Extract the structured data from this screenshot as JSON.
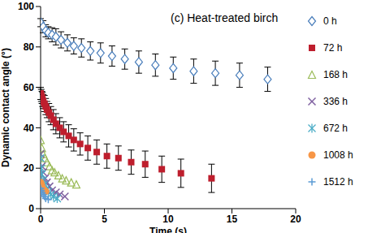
{
  "chart_data": {
    "type": "scatter",
    "title": "(c) Heat-treated birch",
    "x_label": "Time (s)",
    "y_label": "Dynamic contact angle (°)",
    "xlim": [
      0,
      20
    ],
    "ylim": [
      0,
      100
    ],
    "xticks": [
      0,
      5,
      10,
      15,
      20
    ],
    "yticks": [
      0,
      20,
      40,
      60,
      80,
      100
    ],
    "grid": false,
    "legend": "right",
    "series": [
      {
        "name": "0 h",
        "color": "#4a7ebb",
        "marker": "diamond",
        "x": [
          0,
          0.2,
          0.4,
          0.6,
          0.9,
          1.2,
          1.6,
          2.1,
          2.6,
          3.2,
          3.9,
          4.7,
          5.6,
          6.6,
          7.7,
          9.0,
          10.4,
          12.0,
          13.7,
          15.6,
          17.8
        ],
        "values": [
          92,
          90,
          88,
          87,
          86,
          85,
          83.5,
          82,
          80.5,
          79.5,
          78,
          77,
          75.5,
          74,
          72.5,
          71,
          69.5,
          68,
          67,
          66,
          64
        ],
        "errors": [
          2,
          3,
          3,
          3,
          3.5,
          4,
          4,
          4,
          4,
          4.5,
          4.5,
          5,
          5,
          5,
          5.5,
          5.5,
          5.5,
          6,
          6,
          6,
          6
        ]
      },
      {
        "name": "72 h",
        "color": "#be1e2d",
        "marker": "square",
        "x": [
          0,
          0.05,
          0.1,
          0.15,
          0.2,
          0.3,
          0.4,
          0.5,
          0.65,
          0.8,
          1.0,
          1.2,
          1.5,
          1.8,
          2.2,
          2.6,
          3.1,
          3.7,
          4.4,
          5.2,
          6.1,
          7.1,
          8.2,
          9.5,
          11.0,
          13.4
        ],
        "values": [
          57,
          56,
          55,
          54,
          53,
          52,
          50.5,
          49,
          47.5,
          46,
          44,
          42,
          40,
          38,
          36,
          34,
          32,
          30,
          28,
          26,
          25,
          23,
          22,
          19.5,
          17.5,
          15
        ],
        "errors": [
          3,
          3,
          3,
          3.5,
          3.5,
          4,
          4,
          4,
          4.5,
          4.5,
          5,
          5,
          5,
          5,
          5.5,
          5.5,
          5.5,
          6,
          6,
          6,
          6,
          6,
          6.5,
          6.5,
          7,
          7
        ]
      },
      {
        "name": "168 h",
        "color": "#9bbb59",
        "marker": "triangle",
        "x": [
          0,
          0.1,
          0.2,
          0.35,
          0.5,
          0.7,
          0.9,
          1.1,
          1.4,
          1.7,
          2.0,
          2.4,
          2.8
        ],
        "values": [
          34,
          30,
          27,
          25,
          23,
          21,
          19,
          18,
          16.5,
          15,
          14,
          13,
          12
        ]
      },
      {
        "name": "336 h",
        "color": "#7f60a0",
        "marker": "x",
        "x": [
          0,
          0.1,
          0.2,
          0.35,
          0.5,
          0.7,
          0.9,
          1.2,
          1.5,
          1.9
        ],
        "values": [
          27,
          21,
          18,
          15,
          13,
          11,
          9,
          8,
          7,
          6
        ]
      },
      {
        "name": "672 h",
        "color": "#4bacc6",
        "marker": "asterisk",
        "x": [
          0,
          0.05,
          0.1,
          0.2,
          0.3,
          0.45,
          0.6,
          0.8,
          1.0,
          1.3
        ],
        "values": [
          25,
          20,
          17,
          14,
          12,
          10,
          8.5,
          7,
          6,
          5
        ]
      },
      {
        "name": "1008 h",
        "color": "#f79646",
        "marker": "circle",
        "x": [
          0,
          0.05,
          0.1,
          0.15,
          0.2,
          0.3,
          0.4
        ],
        "values": [
          13,
          12,
          11,
          10,
          9.5,
          9,
          8.5
        ]
      },
      {
        "name": "1512 h",
        "color": "#5b9bd5",
        "marker": "plus",
        "x": [
          0,
          0.05,
          0.1,
          0.2,
          0.3,
          0.4,
          0.6
        ],
        "values": [
          10,
          9,
          8,
          7,
          6,
          5,
          4.5
        ]
      }
    ]
  }
}
